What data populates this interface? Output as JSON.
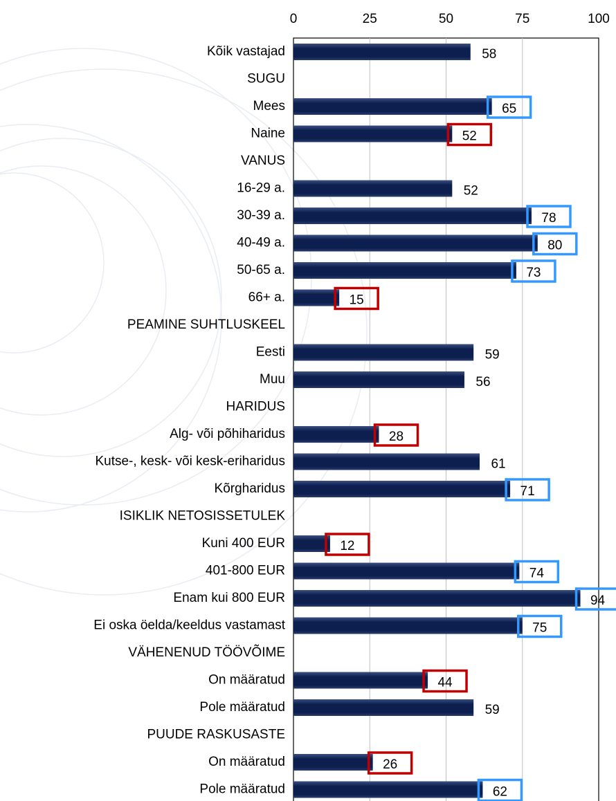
{
  "chart_data": {
    "type": "bar",
    "orientation": "horizontal",
    "categories": [
      "Kõik vastajad",
      "SUGU",
      "Mees",
      "Naine",
      "VANUS",
      "16-29 a.",
      "30-39 a.",
      "40-49 a.",
      "50-65 a.",
      "66+ a.",
      "PEAMINE SUHTLUSKEEL",
      "Eesti",
      "Muu",
      "HARIDUS",
      "Alg- või põhiharidus",
      "Kutse-, kesk- või kesk-eriharidus",
      "Kõrgharidus",
      "ISIKLIK NETOSISSETULEK",
      "Kuni 400 EUR",
      "401-800 EUR",
      "Enam kui 800 EUR",
      "Ei oska öelda/keeldus vastamast",
      "VÄHENENUD TÖÖVÕIME",
      "On määratud",
      "Pole määratud",
      "PUUDE RASKUSASTE",
      "On määratud",
      "Pole määratud"
    ],
    "values": [
      58,
      null,
      65,
      52,
      null,
      52,
      78,
      80,
      73,
      15,
      null,
      59,
      56,
      null,
      28,
      61,
      71,
      null,
      12,
      74,
      94,
      75,
      null,
      44,
      59,
      null,
      26,
      62
    ],
    "highlight": [
      null,
      null,
      "high",
      "low",
      null,
      null,
      "high",
      "high",
      "high",
      "low",
      null,
      null,
      null,
      null,
      "low",
      null,
      "high",
      null,
      "low",
      "high",
      "high",
      "high",
      null,
      "low",
      null,
      null,
      "low",
      "high"
    ],
    "highlight_colors": {
      "high": "#3399ff",
      "low": "#c00000"
    },
    "color": "#0c1f4f",
    "xlim": [
      0,
      100
    ],
    "xticks": [
      0,
      25,
      50,
      75,
      100
    ],
    "grid": true
  }
}
